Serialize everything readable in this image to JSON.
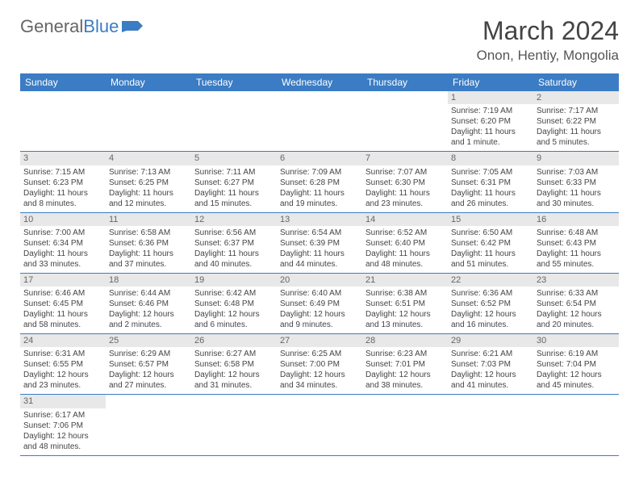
{
  "logo": {
    "general": "General",
    "blue": "Blue"
  },
  "title": "March 2024",
  "location": "Onon, Hentiy, Mongolia",
  "colors": {
    "header_bg": "#3b7cc4",
    "header_text": "#ffffff",
    "daynum_bg": "#e8e8e8",
    "border": "#3b7cc4",
    "body_text": "#444444"
  },
  "weekdays": [
    "Sunday",
    "Monday",
    "Tuesday",
    "Wednesday",
    "Thursday",
    "Friday",
    "Saturday"
  ],
  "weeks": [
    [
      null,
      null,
      null,
      null,
      null,
      {
        "n": "1",
        "sr": "Sunrise: 7:19 AM",
        "ss": "Sunset: 6:20 PM",
        "dl": "Daylight: 11 hours and 1 minute."
      },
      {
        "n": "2",
        "sr": "Sunrise: 7:17 AM",
        "ss": "Sunset: 6:22 PM",
        "dl": "Daylight: 11 hours and 5 minutes."
      }
    ],
    [
      {
        "n": "3",
        "sr": "Sunrise: 7:15 AM",
        "ss": "Sunset: 6:23 PM",
        "dl": "Daylight: 11 hours and 8 minutes."
      },
      {
        "n": "4",
        "sr": "Sunrise: 7:13 AM",
        "ss": "Sunset: 6:25 PM",
        "dl": "Daylight: 11 hours and 12 minutes."
      },
      {
        "n": "5",
        "sr": "Sunrise: 7:11 AM",
        "ss": "Sunset: 6:27 PM",
        "dl": "Daylight: 11 hours and 15 minutes."
      },
      {
        "n": "6",
        "sr": "Sunrise: 7:09 AM",
        "ss": "Sunset: 6:28 PM",
        "dl": "Daylight: 11 hours and 19 minutes."
      },
      {
        "n": "7",
        "sr": "Sunrise: 7:07 AM",
        "ss": "Sunset: 6:30 PM",
        "dl": "Daylight: 11 hours and 23 minutes."
      },
      {
        "n": "8",
        "sr": "Sunrise: 7:05 AM",
        "ss": "Sunset: 6:31 PM",
        "dl": "Daylight: 11 hours and 26 minutes."
      },
      {
        "n": "9",
        "sr": "Sunrise: 7:03 AM",
        "ss": "Sunset: 6:33 PM",
        "dl": "Daylight: 11 hours and 30 minutes."
      }
    ],
    [
      {
        "n": "10",
        "sr": "Sunrise: 7:00 AM",
        "ss": "Sunset: 6:34 PM",
        "dl": "Daylight: 11 hours and 33 minutes."
      },
      {
        "n": "11",
        "sr": "Sunrise: 6:58 AM",
        "ss": "Sunset: 6:36 PM",
        "dl": "Daylight: 11 hours and 37 minutes."
      },
      {
        "n": "12",
        "sr": "Sunrise: 6:56 AM",
        "ss": "Sunset: 6:37 PM",
        "dl": "Daylight: 11 hours and 40 minutes."
      },
      {
        "n": "13",
        "sr": "Sunrise: 6:54 AM",
        "ss": "Sunset: 6:39 PM",
        "dl": "Daylight: 11 hours and 44 minutes."
      },
      {
        "n": "14",
        "sr": "Sunrise: 6:52 AM",
        "ss": "Sunset: 6:40 PM",
        "dl": "Daylight: 11 hours and 48 minutes."
      },
      {
        "n": "15",
        "sr": "Sunrise: 6:50 AM",
        "ss": "Sunset: 6:42 PM",
        "dl": "Daylight: 11 hours and 51 minutes."
      },
      {
        "n": "16",
        "sr": "Sunrise: 6:48 AM",
        "ss": "Sunset: 6:43 PM",
        "dl": "Daylight: 11 hours and 55 minutes."
      }
    ],
    [
      {
        "n": "17",
        "sr": "Sunrise: 6:46 AM",
        "ss": "Sunset: 6:45 PM",
        "dl": "Daylight: 11 hours and 58 minutes."
      },
      {
        "n": "18",
        "sr": "Sunrise: 6:44 AM",
        "ss": "Sunset: 6:46 PM",
        "dl": "Daylight: 12 hours and 2 minutes."
      },
      {
        "n": "19",
        "sr": "Sunrise: 6:42 AM",
        "ss": "Sunset: 6:48 PM",
        "dl": "Daylight: 12 hours and 6 minutes."
      },
      {
        "n": "20",
        "sr": "Sunrise: 6:40 AM",
        "ss": "Sunset: 6:49 PM",
        "dl": "Daylight: 12 hours and 9 minutes."
      },
      {
        "n": "21",
        "sr": "Sunrise: 6:38 AM",
        "ss": "Sunset: 6:51 PM",
        "dl": "Daylight: 12 hours and 13 minutes."
      },
      {
        "n": "22",
        "sr": "Sunrise: 6:36 AM",
        "ss": "Sunset: 6:52 PM",
        "dl": "Daylight: 12 hours and 16 minutes."
      },
      {
        "n": "23",
        "sr": "Sunrise: 6:33 AM",
        "ss": "Sunset: 6:54 PM",
        "dl": "Daylight: 12 hours and 20 minutes."
      }
    ],
    [
      {
        "n": "24",
        "sr": "Sunrise: 6:31 AM",
        "ss": "Sunset: 6:55 PM",
        "dl": "Daylight: 12 hours and 23 minutes."
      },
      {
        "n": "25",
        "sr": "Sunrise: 6:29 AM",
        "ss": "Sunset: 6:57 PM",
        "dl": "Daylight: 12 hours and 27 minutes."
      },
      {
        "n": "26",
        "sr": "Sunrise: 6:27 AM",
        "ss": "Sunset: 6:58 PM",
        "dl": "Daylight: 12 hours and 31 minutes."
      },
      {
        "n": "27",
        "sr": "Sunrise: 6:25 AM",
        "ss": "Sunset: 7:00 PM",
        "dl": "Daylight: 12 hours and 34 minutes."
      },
      {
        "n": "28",
        "sr": "Sunrise: 6:23 AM",
        "ss": "Sunset: 7:01 PM",
        "dl": "Daylight: 12 hours and 38 minutes."
      },
      {
        "n": "29",
        "sr": "Sunrise: 6:21 AM",
        "ss": "Sunset: 7:03 PM",
        "dl": "Daylight: 12 hours and 41 minutes."
      },
      {
        "n": "30",
        "sr": "Sunrise: 6:19 AM",
        "ss": "Sunset: 7:04 PM",
        "dl": "Daylight: 12 hours and 45 minutes."
      }
    ],
    [
      {
        "n": "31",
        "sr": "Sunrise: 6:17 AM",
        "ss": "Sunset: 7:06 PM",
        "dl": "Daylight: 12 hours and 48 minutes."
      },
      null,
      null,
      null,
      null,
      null,
      null
    ]
  ]
}
